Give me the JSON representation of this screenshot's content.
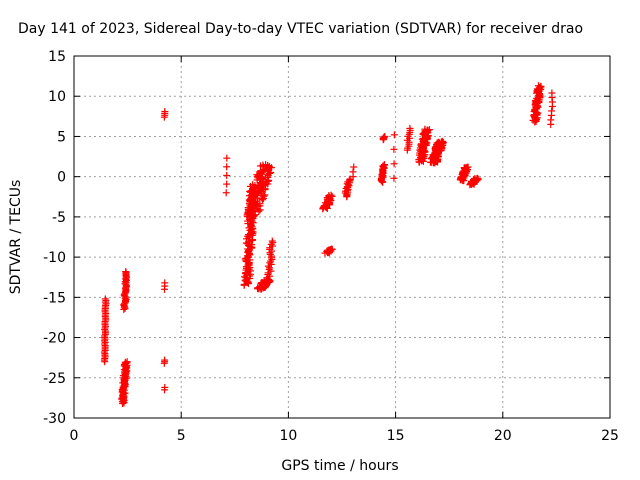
{
  "chart_data": {
    "type": "scatter",
    "title": "Day 141 of 2023, Sidereal Day-to-day VTEC variation (SDTVAR) for receiver drao",
    "xlabel": "GPS time / hours",
    "ylabel": "SDTVAR / TECUs",
    "xlim": [
      0,
      25
    ],
    "ylim": [
      -30,
      15
    ],
    "xticks": [
      0,
      5,
      10,
      15,
      20,
      25
    ],
    "yticks": [
      -30,
      -25,
      -20,
      -15,
      -10,
      -5,
      0,
      5,
      10,
      15
    ],
    "grid": true,
    "marker": "plus",
    "color": "#ff0000",
    "clusters": [
      {
        "x": [
          1.4,
          1.5
        ],
        "y": [
          -23.0,
          -15.2
        ],
        "n": 40
      },
      {
        "x": [
          2.2,
          2.5
        ],
        "y": [
          -28.2,
          -23.0
        ],
        "n": 70
      },
      {
        "x": [
          2.3,
          2.5
        ],
        "y": [
          -16.5,
          -11.8
        ],
        "n": 35
      },
      {
        "x": [
          4.2,
          4.25
        ],
        "y": [
          7.4,
          8.1
        ],
        "n": 4
      },
      {
        "x": [
          4.2,
          4.25
        ],
        "y": [
          -14.0,
          -13.2
        ],
        "n": 3
      },
      {
        "x": [
          4.2,
          4.25
        ],
        "y": [
          -23.2,
          -22.8
        ],
        "n": 3
      },
      {
        "x": [
          4.2,
          4.25
        ],
        "y": [
          -26.5,
          -26.2
        ],
        "n": 2
      },
      {
        "x": [
          7.1,
          7.15
        ],
        "y": [
          -2.0,
          2.3
        ],
        "n": 5
      },
      {
        "x": [
          7.9,
          8.5
        ],
        "y": [
          -13.5,
          -1.0
        ],
        "n": 120
      },
      {
        "x": [
          8.5,
          9.2
        ],
        "y": [
          -14.0,
          -12.8
        ],
        "n": 50
      },
      {
        "x": [
          9.0,
          9.3
        ],
        "y": [
          -13.0,
          -8.0
        ],
        "n": 25
      },
      {
        "x": [
          8.0,
          9.3
        ],
        "y": [
          -5.0,
          1.5
        ],
        "n": 120
      },
      {
        "x": [
          11.7,
          12.1
        ],
        "y": [
          -9.5,
          -9.0
        ],
        "n": 20
      },
      {
        "x": [
          11.6,
          12.1
        ],
        "y": [
          -4.0,
          -2.3
        ],
        "n": 35
      },
      {
        "x": [
          12.6,
          12.9
        ],
        "y": [
          -2.5,
          -0.3
        ],
        "n": 20
      },
      {
        "x": [
          13.0,
          13.05
        ],
        "y": [
          0.0,
          1.2
        ],
        "n": 3
      },
      {
        "x": [
          14.3,
          14.5
        ],
        "y": [
          -0.7,
          1.5
        ],
        "n": 25
      },
      {
        "x": [
          14.4,
          14.5
        ],
        "y": [
          4.6,
          5.0
        ],
        "n": 6
      },
      {
        "x": [
          14.9,
          14.95
        ],
        "y": [
          -0.2,
          5.2
        ],
        "n": 4
      },
      {
        "x": [
          15.5,
          15.7
        ],
        "y": [
          3.3,
          6.0
        ],
        "n": 12
      },
      {
        "x": [
          16.0,
          16.6
        ],
        "y": [
          1.8,
          5.9
        ],
        "n": 80
      },
      {
        "x": [
          16.6,
          17.3
        ],
        "y": [
          1.7,
          4.4
        ],
        "n": 90
      },
      {
        "x": [
          18.0,
          18.4
        ],
        "y": [
          -0.5,
          1.2
        ],
        "n": 50
      },
      {
        "x": [
          18.4,
          18.9
        ],
        "y": [
          -1.0,
          -0.2
        ],
        "n": 30
      },
      {
        "x": [
          21.4,
          21.8
        ],
        "y": [
          6.8,
          11.3
        ],
        "n": 70
      },
      {
        "x": [
          22.2,
          22.35
        ],
        "y": [
          6.5,
          10.4
        ],
        "n": 8
      }
    ]
  }
}
